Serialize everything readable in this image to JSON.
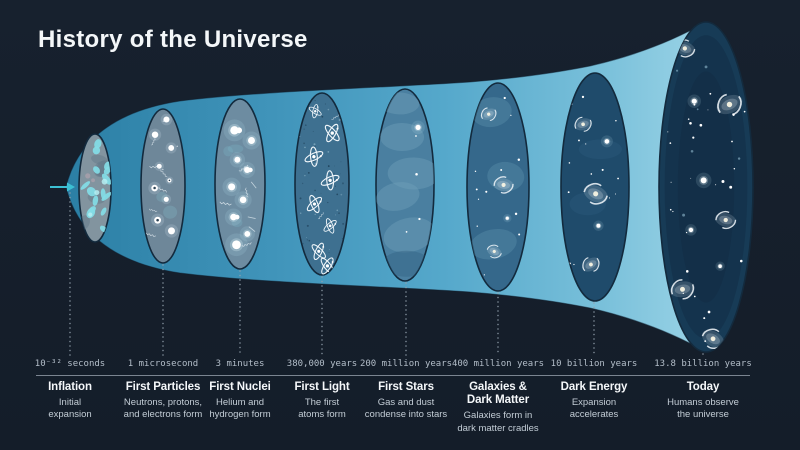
{
  "title": "History of the Universe",
  "colors": {
    "background": "#151f2b",
    "title_text": "#f4f7f9",
    "horn_gradient": [
      "#2b7fa5",
      "#4094ba",
      "#55a8cb",
      "#79c0da",
      "#a9dcec"
    ],
    "ellipse_outline": "#132a3d",
    "axis_line": "#8d98a3",
    "time_text": "#b3bec9",
    "stage_title_text": "#f5f8fa",
    "stage_desc_text": "#c3cdd6",
    "leader_dots": "#93a0ac",
    "big_bang_arrow": "#3cc0d4"
  },
  "stages": [
    {
      "id": "inflation",
      "time": "10⁻³² seconds",
      "title": "Inflation",
      "description": "Initial\nexpansion",
      "motif": "quantum-fluctuations",
      "fill": "#82949f"
    },
    {
      "id": "first-particles",
      "time": "1 microsecond",
      "title": "First Particles",
      "description": "Neutrons, protons,\nand electrons form",
      "motif": "particles",
      "fill": "#6e8799"
    },
    {
      "id": "first-nuclei",
      "time": "3 minutes",
      "title": "First Nuclei",
      "description": "Helium and\nhydrogen form",
      "motif": "glowing-nuclei",
      "fill": "#6d8ca1"
    },
    {
      "id": "first-light",
      "time": "380,000 years",
      "title": "First Light",
      "description": "The first\natoms form",
      "motif": "atoms",
      "fill": "#3e7090"
    },
    {
      "id": "first-stars",
      "time": "200 million years",
      "title": "First Stars",
      "description": "Gas and dust\ncondense into stars",
      "motif": "gas-clouds",
      "fill": "#4a7fa0"
    },
    {
      "id": "galaxies-dark-matter",
      "time": "400 million years",
      "title": "Galaxies &\nDark Matter",
      "description": "Galaxies form in\ndark matter cradles",
      "motif": "young-galaxies",
      "fill": "#35688b"
    },
    {
      "id": "dark-energy",
      "time": "10 billion years",
      "title": "Dark Energy",
      "description": "Expansion\naccelerates",
      "motif": "accelerating-galaxies",
      "fill": "#1f4b6b"
    },
    {
      "id": "today",
      "time": "13.8 billion years",
      "title": "Today",
      "description": "Humans observe\nthe universe",
      "motif": "modern-universe",
      "fill": "#173b56"
    }
  ]
}
